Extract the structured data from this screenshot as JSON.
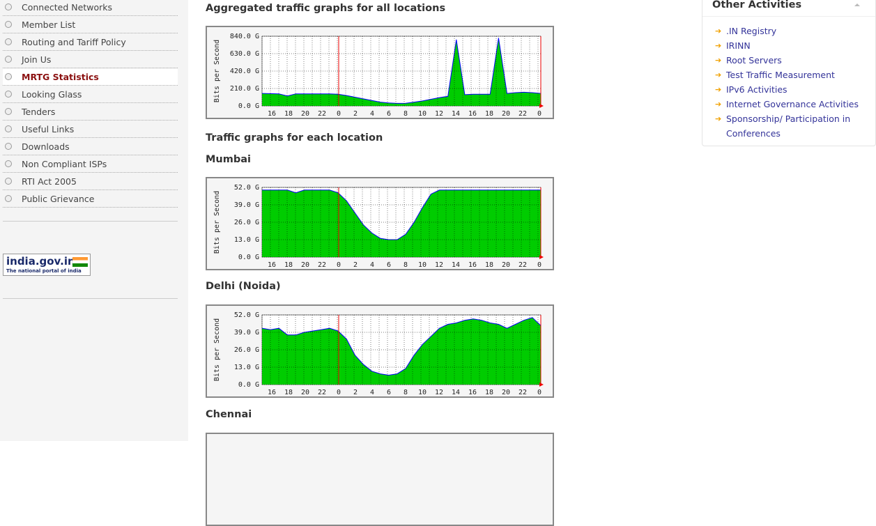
{
  "sidebar": {
    "menu": [
      "Connected Networks",
      "Member List",
      "Routing and Tariff Policy",
      "Join Us",
      "MRTG Statistics",
      "Looking Glass",
      "Tenders",
      "Useful Links",
      "Downloads",
      "Non Compliant ISPs",
      "RTI Act 2005",
      "Public Grievance"
    ],
    "active_item": 4,
    "logo": {
      "title": "india.gov.in",
      "subtitle": "The national portal of india"
    }
  },
  "main": {
    "section_heading": "Traffic graphs for each location",
    "area_color": "#00cc00",
    "line_color": "#0000ff",
    "graphs": [
      {
        "title": "Aggregated traffic graphs for all locations",
        "ylabel": "Bits per Second",
        "ylim": [
          0,
          840
        ],
        "yticks": [
          {
            "value": 0,
            "label": "0.0 G"
          },
          {
            "value": 210,
            "label": "210.0 G"
          },
          {
            "value": 420,
            "label": "420.0 G"
          },
          {
            "value": 630,
            "label": "630.0 G"
          },
          {
            "value": 840,
            "label": "840.0 G"
          }
        ],
        "xticks": [
          "16",
          "18",
          "20",
          "22",
          "0",
          "2",
          "4",
          "6",
          "8",
          "10",
          "12",
          "14",
          "16",
          "18",
          "20",
          "22",
          "0"
        ],
        "values": [
          150,
          148,
          145,
          120,
          145,
          145,
          145,
          145,
          145,
          140,
          125,
          105,
          85,
          65,
          45,
          35,
          30,
          32,
          45,
          60,
          80,
          100,
          115,
          800,
          135,
          140,
          140,
          140,
          820,
          150,
          160,
          165,
          160,
          150
        ]
      },
      {
        "title": "Mumbai",
        "ylabel": "Bits per Second",
        "ylim": [
          0,
          52
        ],
        "yticks": [
          {
            "value": 0,
            "label": "0.0 G"
          },
          {
            "value": 13,
            "label": "13.0 G"
          },
          {
            "value": 26,
            "label": "26.0 G"
          },
          {
            "value": 39,
            "label": "39.0 G"
          },
          {
            "value": 52,
            "label": "52.0 G"
          }
        ],
        "xticks": [
          "16",
          "18",
          "20",
          "22",
          "0",
          "2",
          "4",
          "6",
          "8",
          "10",
          "12",
          "14",
          "16",
          "18",
          "20",
          "22",
          "0"
        ],
        "values": [
          50,
          50,
          50,
          50,
          48,
          50,
          50,
          50,
          50,
          48,
          42,
          33,
          24,
          18,
          14,
          13,
          13,
          17,
          26,
          37,
          47,
          50,
          50,
          50,
          50,
          50,
          50,
          50,
          50,
          50,
          50,
          50,
          50,
          50
        ]
      },
      {
        "title": "Delhi (Noida)",
        "ylabel": "Bits per Second",
        "ylim": [
          0,
          52
        ],
        "yticks": [
          {
            "value": 0,
            "label": "0.0 G"
          },
          {
            "value": 13,
            "label": "13.0 G"
          },
          {
            "value": 26,
            "label": "26.0 G"
          },
          {
            "value": 39,
            "label": "39.0 G"
          },
          {
            "value": 52,
            "label": "52.0 G"
          }
        ],
        "xticks": [
          "16",
          "18",
          "20",
          "22",
          "0",
          "2",
          "4",
          "6",
          "8",
          "10",
          "12",
          "14",
          "16",
          "18",
          "20",
          "22",
          "0"
        ],
        "values": [
          42,
          41,
          42,
          37,
          37,
          39,
          40,
          41,
          42,
          40,
          34,
          22,
          15,
          10,
          8,
          7,
          8,
          12,
          22,
          30,
          36,
          42,
          45,
          46,
          48,
          49,
          48,
          46,
          45,
          42,
          45,
          48,
          50,
          44
        ]
      },
      {
        "title": "Chennai"
      }
    ]
  },
  "other_activities": {
    "title": "Other Activities",
    "links": [
      ".IN Registry",
      "IRINN",
      "Root Servers",
      "Test Traffic Measurement",
      "IPv6 Activities",
      "Internet Governance Activities",
      "Sponsorship/ Participation in Conferences"
    ]
  }
}
